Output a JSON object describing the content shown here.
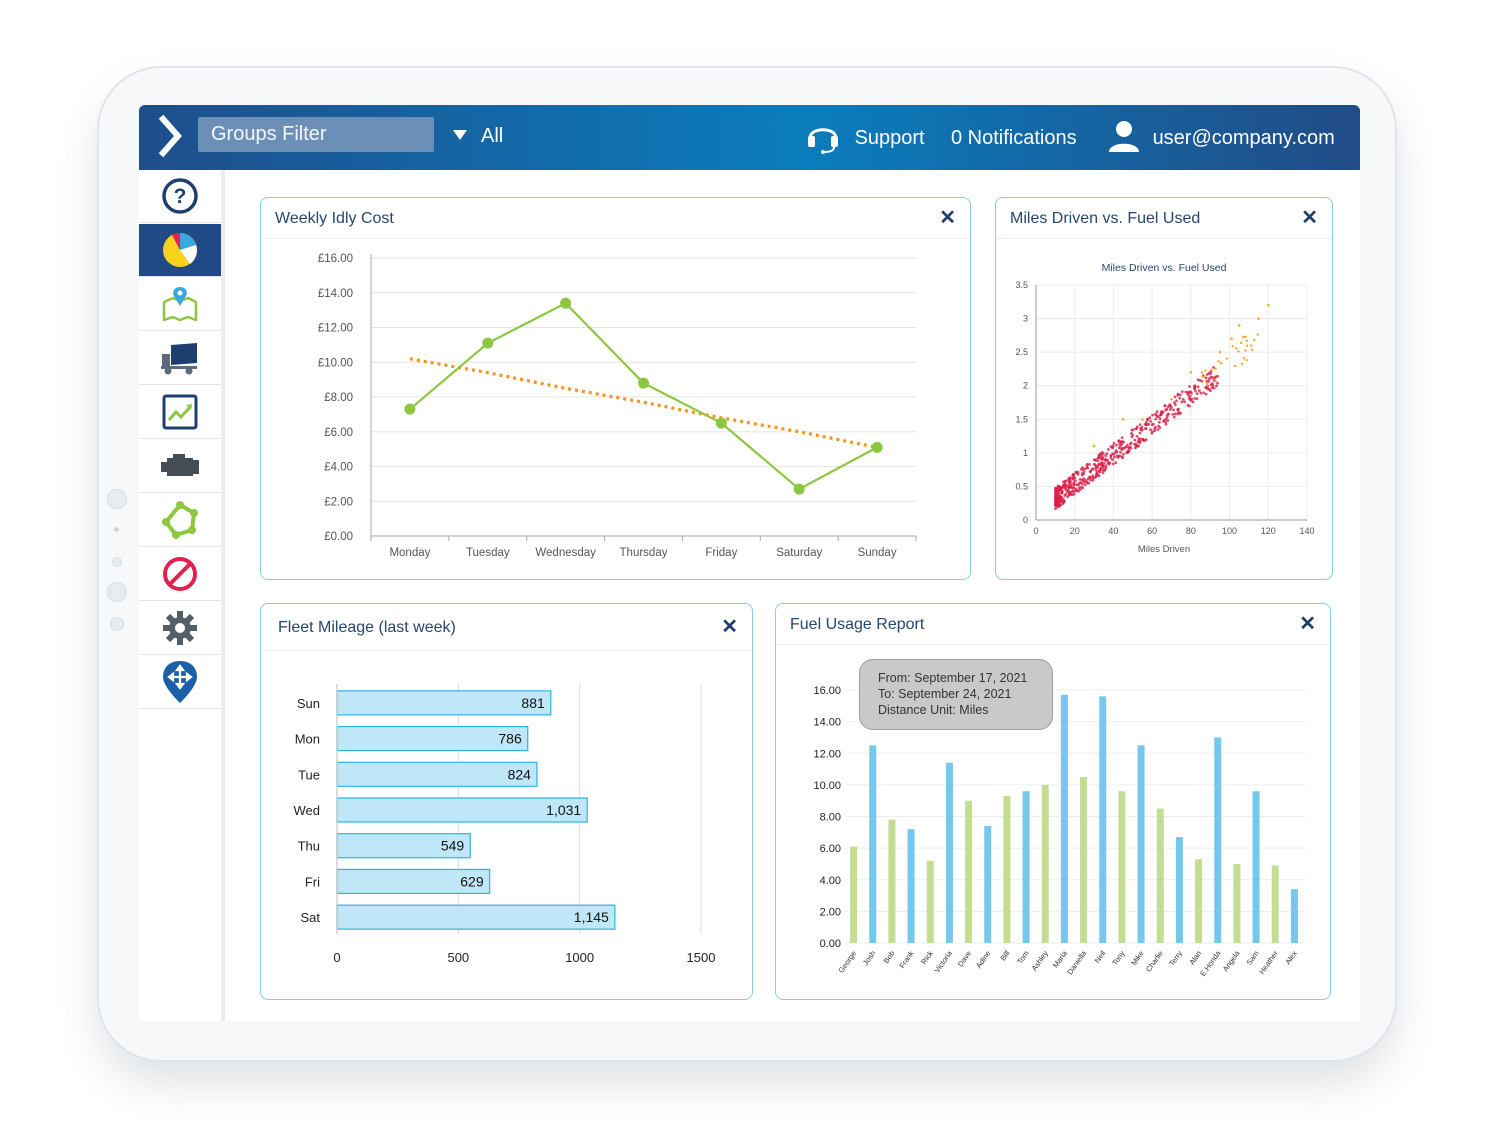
{
  "header": {
    "groups_filter_label": "Groups Filter",
    "filter_value": "All",
    "support_label": "Support",
    "notifications_label": "0 Notifications",
    "user_email": "user@company.com"
  },
  "sidebar": {
    "items": [
      {
        "name": "help",
        "icon": "question-circle-icon"
      },
      {
        "name": "dashboard",
        "icon": "pie-chart-icon",
        "active": true
      },
      {
        "name": "map",
        "icon": "map-pin-icon"
      },
      {
        "name": "vehicles",
        "icon": "truck-icon"
      },
      {
        "name": "reports",
        "icon": "trending-chart-icon"
      },
      {
        "name": "engine",
        "icon": "engine-icon"
      },
      {
        "name": "geofence",
        "icon": "polygon-icon"
      },
      {
        "name": "restrictions",
        "icon": "prohibited-icon"
      },
      {
        "name": "settings",
        "icon": "gear-icon"
      },
      {
        "name": "routing",
        "icon": "location-arrows-icon"
      }
    ]
  },
  "panels": {
    "weekly_idly": {
      "title": "Weekly Idly Cost"
    },
    "miles_fuel": {
      "title": "Miles Driven vs. Fuel Used"
    },
    "fleet_mileage": {
      "title": "Fleet Mileage (last week)"
    },
    "fuel_usage": {
      "title": "Fuel Usage Report"
    }
  },
  "fuel_tooltip": {
    "from": "From: September 17, 2021",
    "to": "To: September 24, 2021",
    "unit": "Distance Unit: Miles"
  },
  "colors": {
    "header_dark": "#1f4e8c",
    "header_light": "#0a7dbd",
    "line_green": "#8dc63f",
    "trend_orange": "#f7941d",
    "bar_blue": "#bfe7f7",
    "bar_border": "#2fb3e3",
    "fuel_green": "#c5dc93",
    "fuel_blue": "#74c8ec",
    "scatter_red": "#d9214a",
    "scatter_orange": "#f5a623"
  },
  "chart_data": [
    {
      "id": "weekly_idly_cost",
      "type": "line",
      "categories": [
        "Monday",
        "Tuesday",
        "Wednesday",
        "Thursday",
        "Friday",
        "Saturday",
        "Sunday"
      ],
      "series": [
        {
          "values": [
            7.3,
            11.1,
            13.4,
            8.8,
            6.5,
            2.7,
            5.1
          ]
        },
        {
          "values": [
            10.2,
            9.4,
            8.5,
            7.7,
            6.8,
            6.0,
            5.1
          ]
        }
      ],
      "yticks": [
        "£0.00",
        "£2.00",
        "£4.00",
        "£6.00",
        "£8.00",
        "£10.00",
        "£12.00",
        "£14.00",
        "£16.00"
      ],
      "ylim": [
        0,
        16
      ]
    },
    {
      "id": "miles_vs_fuel",
      "type": "scatter",
      "title": "Miles Driven vs. Fuel Used",
      "xlabel": "Miles Driven",
      "xlim": [
        0,
        140
      ],
      "ylim": [
        0,
        3.5
      ],
      "xticks": [
        "0",
        "20",
        "40",
        "60",
        "80",
        "100",
        "120",
        "140"
      ],
      "yticks": [
        "0",
        "0.5",
        "1",
        "1.5",
        "2",
        "2.5",
        "3",
        "3.5"
      ],
      "trend": {
        "slope": 0.022,
        "intercept": 0.1
      },
      "orange_outliers": [
        [
          120,
          3.2
        ],
        [
          115,
          3.0
        ],
        [
          105,
          2.9
        ],
        [
          101,
          2.7
        ],
        [
          95,
          2.5
        ],
        [
          80,
          2.2
        ],
        [
          70,
          1.8
        ],
        [
          55,
          1.5
        ],
        [
          45,
          1.5
        ],
        [
          30,
          1.1
        ]
      ]
    },
    {
      "id": "fleet_mileage",
      "type": "bar",
      "orientation": "horizontal",
      "categories": [
        "Sun",
        "Mon",
        "Tue",
        "Wed",
        "Thu",
        "Fri",
        "Sat"
      ],
      "values": [
        881,
        786,
        824,
        1031,
        549,
        629,
        1145
      ],
      "labels": [
        "881",
        "786",
        "824",
        "1,031",
        "549",
        "629",
        "1,145"
      ],
      "xticks": [
        "0",
        "500",
        "1000",
        "1500"
      ],
      "xlim": [
        0,
        1500
      ]
    },
    {
      "id": "fuel_usage",
      "type": "bar",
      "categories": [
        "George",
        "Josh",
        "Bob",
        "Frank",
        "Rick",
        "Victoria",
        "Dave",
        "Adine",
        "Bill",
        "Tom",
        "Ashley",
        "Maria",
        "Daniella",
        "Neil",
        "Tony",
        "Mike",
        "Charlie",
        "Terry",
        "Alan",
        "E.Honda",
        "Angela",
        "Sam",
        "Heather",
        "Alex"
      ],
      "values": [
        6.1,
        12.5,
        7.8,
        7.2,
        5.2,
        11.4,
        9.0,
        7.4,
        9.3,
        9.6,
        10.0,
        15.7,
        10.5,
        15.6,
        9.6,
        12.5,
        8.5,
        6.7,
        5.3,
        13.0,
        5.0,
        9.6,
        4.9,
        3.4
      ],
      "yticks": [
        "0.00",
        "2.00",
        "4.00",
        "6.00",
        "8.00",
        "10.00",
        "12.00",
        "14.00",
        "16.00"
      ],
      "ylim": [
        0,
        16
      ]
    }
  ]
}
